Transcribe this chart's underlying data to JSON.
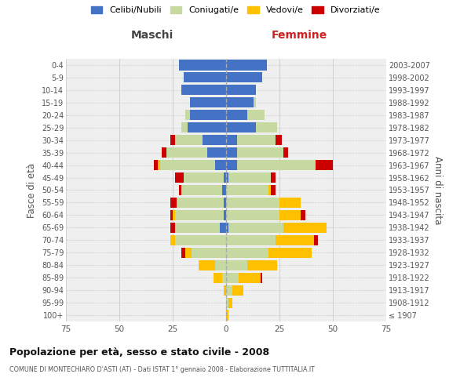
{
  "age_groups": [
    "100+",
    "95-99",
    "90-94",
    "85-89",
    "80-84",
    "75-79",
    "70-74",
    "65-69",
    "60-64",
    "55-59",
    "50-54",
    "45-49",
    "40-44",
    "35-39",
    "30-34",
    "25-29",
    "20-24",
    "15-19",
    "10-14",
    "5-9",
    "0-4"
  ],
  "birth_years": [
    "≤ 1907",
    "1908-1912",
    "1913-1917",
    "1918-1922",
    "1923-1927",
    "1928-1932",
    "1933-1937",
    "1938-1942",
    "1943-1947",
    "1948-1952",
    "1953-1957",
    "1958-1962",
    "1963-1967",
    "1968-1972",
    "1973-1977",
    "1978-1982",
    "1983-1987",
    "1988-1992",
    "1993-1997",
    "1998-2002",
    "2003-2007"
  ],
  "colors": {
    "celibi": "#4472c4",
    "coniugati": "#c5d9a0",
    "vedovi": "#ffc000",
    "divorziati": "#cc0000"
  },
  "males": {
    "celibi": [
      0,
      0,
      0,
      0,
      0,
      0,
      0,
      3,
      1,
      1,
      2,
      1,
      5,
      9,
      11,
      18,
      17,
      17,
      21,
      20,
      22
    ],
    "coniugati": [
      0,
      0,
      0,
      2,
      5,
      16,
      24,
      21,
      23,
      22,
      19,
      19,
      26,
      19,
      13,
      3,
      2,
      0,
      0,
      0,
      0
    ],
    "vedovi": [
      0,
      0,
      1,
      4,
      8,
      3,
      2,
      0,
      1,
      0,
      0,
      0,
      1,
      0,
      0,
      0,
      0,
      0,
      0,
      0,
      0
    ],
    "divorziati": [
      0,
      0,
      0,
      0,
      0,
      2,
      0,
      2,
      1,
      3,
      1,
      4,
      2,
      2,
      2,
      0,
      0,
      0,
      0,
      0,
      0
    ]
  },
  "females": {
    "celibi": [
      0,
      0,
      0,
      0,
      0,
      0,
      0,
      1,
      0,
      0,
      0,
      1,
      5,
      5,
      5,
      14,
      10,
      13,
      14,
      17,
      19
    ],
    "coniugati": [
      0,
      1,
      3,
      6,
      10,
      20,
      23,
      26,
      25,
      25,
      20,
      20,
      37,
      22,
      18,
      10,
      8,
      1,
      0,
      0,
      0
    ],
    "vedovi": [
      1,
      2,
      5,
      10,
      14,
      20,
      18,
      20,
      10,
      10,
      1,
      0,
      0,
      0,
      0,
      0,
      0,
      0,
      0,
      0,
      0
    ],
    "divorziati": [
      0,
      0,
      0,
      1,
      0,
      0,
      2,
      0,
      2,
      0,
      2,
      2,
      8,
      2,
      3,
      0,
      0,
      0,
      0,
      0,
      0
    ]
  },
  "xlim": 75,
  "title_main": "Popolazione per età, sesso e stato civile - 2008",
  "title_sub": "COMUNE DI MONTECHIARO D'ASTI (AT) - Dati ISTAT 1° gennaio 2008 - Elaborazione TUTTITALIA.IT",
  "ylabel_left": "Fasce di età",
  "ylabel_right": "Anni di nascita",
  "xlabel_left": "Maschi",
  "xlabel_right": "Femmine",
  "legend_labels": [
    "Celibi/Nubili",
    "Coniugati/e",
    "Vedovi/e",
    "Divorziati/e"
  ],
  "background_color": "#ffffff",
  "plot_bg": "#efefef",
  "grid_color": "#cccccc"
}
